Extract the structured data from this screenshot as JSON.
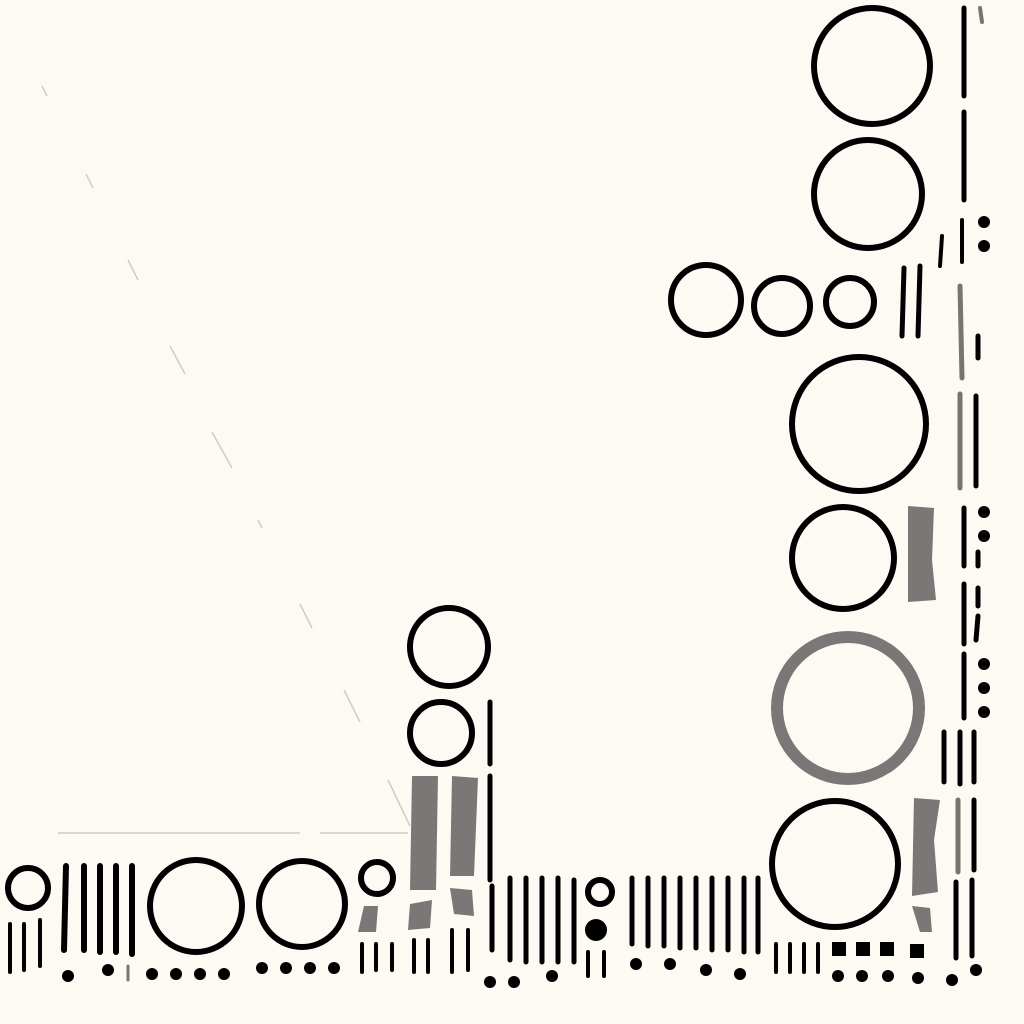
{
  "colors": {
    "background": "#fdfaf3",
    "ink": "#000000",
    "gray": "#777572",
    "faint": "#c9c6bf"
  }
}
